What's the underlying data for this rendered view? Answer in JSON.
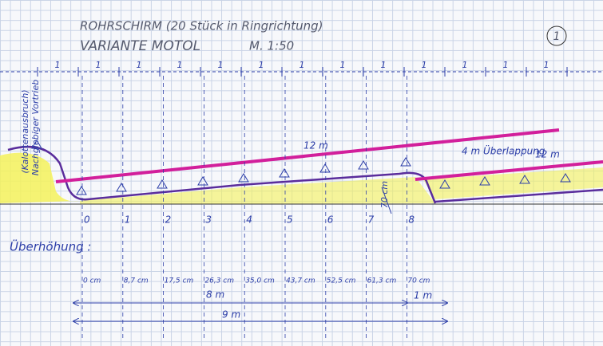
{
  "header": {
    "title": "ROHRSCHIRM (20 Stück in Ringrichtung)",
    "subtitle": "VARIANTE MOTOL",
    "scale": "M. 1:50",
    "sheet": "1"
  },
  "side_labels": [
    "(Kalottenausbruch)",
    "Nachgiebiger Vortrieb"
  ],
  "top_ruler": [
    "1",
    "1",
    "1",
    "1",
    "1",
    "1",
    "1",
    "1",
    "1",
    "1",
    "1",
    "1",
    "1"
  ],
  "annotations": {
    "pipe_1": "12 m",
    "overlap": "4 m Überlappung",
    "pipe_2": "12 m",
    "rise": "70 cm"
  },
  "stations": [
    "0",
    "1",
    "2",
    "3",
    "4",
    "5",
    "6",
    "7",
    "8"
  ],
  "overhang": {
    "title": "Überhöhung :",
    "values": [
      "0 cm",
      "8,7 cm",
      "17,5 cm",
      "26,3 cm",
      "35,0 cm",
      "43,7 cm",
      "52,5 cm",
      "61,3 cm",
      "70 cm"
    ]
  },
  "dimensions": [
    "8 m",
    "1 m",
    "9 m"
  ]
}
